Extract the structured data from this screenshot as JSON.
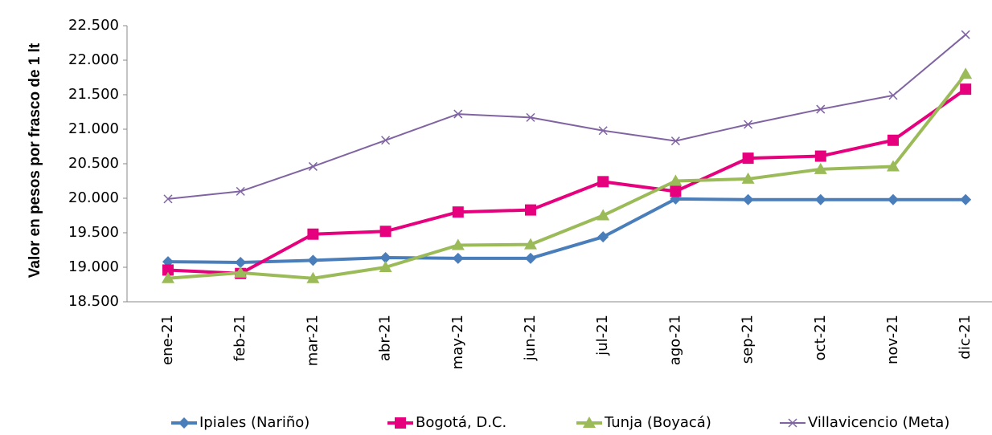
{
  "chart_data": {
    "type": "line",
    "y_label": "Valor en pesos por frasco de 1 lt",
    "categories": [
      "ene-21",
      "feb-21",
      "mar-21",
      "abr-21",
      "may-21",
      "jun-21",
      "jul-21",
      "ago-21",
      "sep-21",
      "oct-21",
      "nov-21",
      "dic-21"
    ],
    "series": [
      {
        "name": "Ipiales (Nariño)",
        "color": "#4a7ebb",
        "marker": "diamond",
        "values": [
          19080,
          19070,
          19100,
          19140,
          19130,
          19130,
          19440,
          19990,
          19980,
          19980,
          19980,
          19980
        ]
      },
      {
        "name": "Bogotá, D.C.",
        "color": "#e6007e",
        "marker": "square",
        "values": [
          18960,
          18910,
          19480,
          19520,
          19800,
          19830,
          20240,
          20100,
          20580,
          20610,
          20840,
          21580
        ]
      },
      {
        "name": "Tunja (Boyacá)",
        "color": "#9bbb59",
        "marker": "triangle",
        "values": [
          18840,
          18920,
          18840,
          19000,
          19320,
          19330,
          19750,
          20250,
          20280,
          20420,
          20460,
          21800
        ]
      },
      {
        "name": "Villavicencio (Meta)",
        "color": "#8064a2",
        "marker": "x",
        "values": [
          19990,
          20100,
          20460,
          20840,
          21220,
          21170,
          20980,
          20830,
          21070,
          21290,
          21490,
          22370
        ]
      }
    ],
    "ylim": [
      18500,
      22500
    ],
    "yticks": [
      {
        "value": 18500,
        "label": "18.500"
      },
      {
        "value": 19000,
        "label": "19.000"
      },
      {
        "value": 19500,
        "label": "19.500"
      },
      {
        "value": 20000,
        "label": "20.000"
      },
      {
        "value": 20500,
        "label": "20.500"
      },
      {
        "value": 21000,
        "label": "21.000"
      },
      {
        "value": 21500,
        "label": "21.500"
      },
      {
        "value": 22000,
        "label": "22.000"
      },
      {
        "value": 22500,
        "label": "22.500"
      }
    ],
    "legend": "bottom"
  }
}
